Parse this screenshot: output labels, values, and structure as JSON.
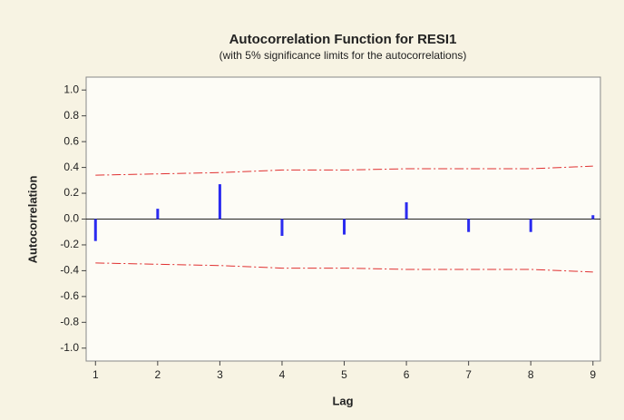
{
  "chart_data": {
    "type": "acf",
    "title": "Autocorrelation Function for RESI1",
    "subtitle": "(with 5% significance limits for the autocorrelations)",
    "x_label": "Lag",
    "y_label": "Autocorrelation",
    "x": [
      1,
      2,
      3,
      4,
      5,
      6,
      7,
      8,
      9
    ],
    "values": [
      -0.17,
      0.08,
      0.27,
      -0.13,
      -0.12,
      0.13,
      -0.1,
      -0.1,
      0.03
    ],
    "color": "#2b2bf0",
    "upper_limit": [
      0.34,
      0.35,
      0.36,
      0.38,
      0.38,
      0.39,
      0.39,
      0.39,
      0.41
    ],
    "lower_limit": [
      -0.34,
      -0.35,
      -0.36,
      -0.38,
      -0.38,
      -0.39,
      -0.39,
      -0.39,
      -0.41
    ],
    "limit_color": "#e03030",
    "xlim": [
      0.85,
      9.12
    ],
    "ylim": [
      -1.1,
      1.1
    ],
    "xticks": [
      1,
      2,
      3,
      4,
      5,
      6,
      7,
      8,
      9
    ],
    "yticks": [
      {
        "value": -1.0,
        "label": "-1.0"
      },
      -0.8,
      -0.6,
      -0.4,
      -0.2,
      {
        "value": 0.0,
        "label": "0.0"
      },
      0.2,
      0.4,
      0.6,
      0.8,
      {
        "value": 1.0,
        "label": "1.0"
      }
    ]
  }
}
